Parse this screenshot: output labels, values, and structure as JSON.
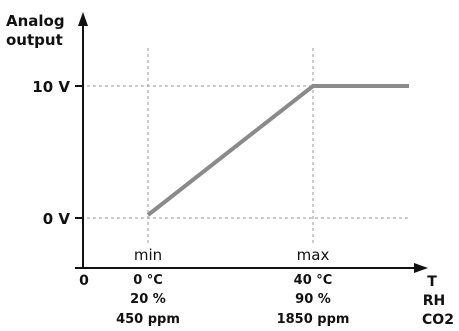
{
  "diagram": {
    "y_axis_title_line1": "Analog",
    "y_axis_title_line2": "output",
    "y_tick_high": "10 V",
    "y_tick_low": "0 V",
    "origin": "0",
    "x_min_label": "min",
    "x_max_label": "max",
    "min_values": [
      "0 °C",
      "20 %",
      "450 ppm"
    ],
    "max_values": [
      "40 °C",
      "90 %",
      "1850 ppm"
    ],
    "x_axis_titles": [
      "T",
      "RH",
      "CO2"
    ]
  },
  "colors": {
    "axis": "#111111",
    "curve": "#8a8a8a",
    "guide": "#9a9a9a"
  }
}
